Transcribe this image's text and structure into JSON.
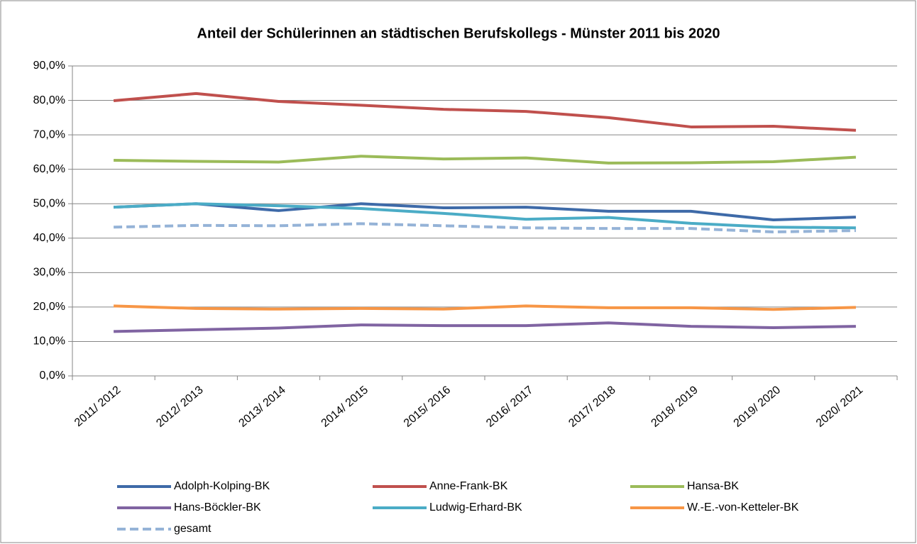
{
  "chart_data": {
    "type": "line",
    "title": "Anteil der Schülerinnen an städtischen Berufskollegs - Münster 2011 bis 2020",
    "categories": [
      "2011/ 2012",
      "2012/ 2013",
      "2013/ 2014",
      "2014/ 2015",
      "2015/ 2016",
      "2016/ 2017",
      "2017/ 2018",
      "2018/ 2019",
      "2019/ 2020",
      "2020/ 2021"
    ],
    "series": [
      {
        "name": "Adolph-Kolping-BK",
        "color": "#3e6aa8",
        "values": [
          49.0,
          50.0,
          48.0,
          50.0,
          48.8,
          49.0,
          47.8,
          47.8,
          45.3,
          46.1
        ]
      },
      {
        "name": "Anne-Frank-BK",
        "color": "#c0504d",
        "values": [
          79.9,
          82.0,
          79.7,
          78.6,
          77.4,
          76.8,
          75.0,
          72.3,
          72.5,
          71.3
        ]
      },
      {
        "name": "Hansa-BK",
        "color": "#9bbb59",
        "values": [
          62.6,
          62.3,
          62.1,
          63.8,
          63.0,
          63.3,
          61.8,
          61.9,
          62.2,
          63.5
        ]
      },
      {
        "name": "Hans-Böckler-BK",
        "color": "#8064a2",
        "values": [
          12.9,
          13.4,
          13.9,
          14.8,
          14.6,
          14.6,
          15.4,
          14.4,
          14.0,
          14.4
        ]
      },
      {
        "name": "Ludwig-Erhard-BK",
        "color": "#4bacc6",
        "values": [
          49.0,
          50.0,
          49.4,
          48.6,
          47.2,
          45.5,
          46.0,
          44.3,
          43.2,
          43.0
        ]
      },
      {
        "name": "W.-E.-von-Ketteler-BK",
        "color": "#f79646",
        "values": [
          20.3,
          19.6,
          19.4,
          19.6,
          19.4,
          20.3,
          19.8,
          19.8,
          19.3,
          19.9
        ]
      },
      {
        "name": "gesamt",
        "color": "#95b3d7",
        "dashed": true,
        "values": [
          43.2,
          43.7,
          43.6,
          44.2,
          43.6,
          43.0,
          42.8,
          42.8,
          41.8,
          42.2
        ]
      }
    ],
    "ylim": [
      0,
      90
    ],
    "yticks": [
      {
        "value": 0,
        "label": "0,0%"
      },
      {
        "value": 10,
        "label": "10,0%"
      },
      {
        "value": 20,
        "label": "20,0%"
      },
      {
        "value": 30,
        "label": "30,0%"
      },
      {
        "value": 40,
        "label": "40,0%"
      },
      {
        "value": 50,
        "label": "50,0%"
      },
      {
        "value": 60,
        "label": "60,0%"
      },
      {
        "value": 70,
        "label": "70,0%"
      },
      {
        "value": 80,
        "label": "80,0%"
      },
      {
        "value": 90,
        "label": "90,0%"
      }
    ],
    "grid": true,
    "legend": "bottom"
  }
}
